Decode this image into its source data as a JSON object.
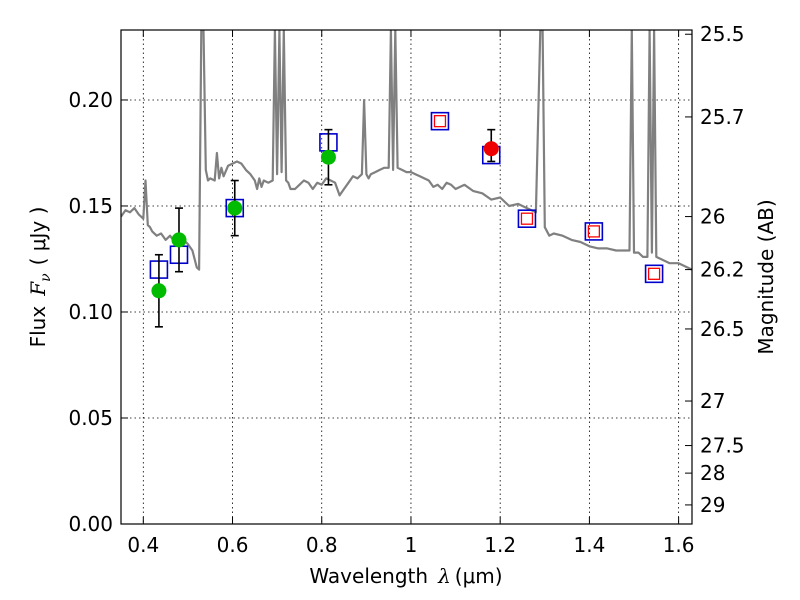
{
  "chart_data": {
    "type": "scatter",
    "xlabel_text": "Wavelength",
    "xlabel_symbol": "λ",
    "xlabel_unit": "(μm)",
    "ylabel_text": "Flux",
    "ylabel_symbol": "F",
    "ylabel_subscript": "ν",
    "ylabel_unit": "( μJy )",
    "y2label": "Magnitude (AB)",
    "xlim": [
      0.35,
      1.63
    ],
    "ylim": [
      0.0,
      0.233
    ],
    "grid": true,
    "x_ticks": [
      0.4,
      0.6,
      0.8,
      1.0,
      1.2,
      1.4,
      1.6
    ],
    "x_tick_labels": [
      "0.4",
      "0.6",
      "0.8",
      "1",
      "1.2",
      "1.4",
      "1.6"
    ],
    "y_ticks": [
      0.0,
      0.05,
      0.1,
      0.15,
      0.2
    ],
    "y_tick_labels": [
      "0.00",
      "0.05",
      "0.10",
      "0.15",
      "0.20"
    ],
    "mag_ticks": [
      {
        "flux": 0.231,
        "label": "25.5"
      },
      {
        "flux": 0.192,
        "label": "25.7"
      },
      {
        "flux": 0.145,
        "label": "26"
      },
      {
        "flux": 0.12,
        "label": "26.2"
      },
      {
        "flux": 0.092,
        "label": "26.5"
      },
      {
        "flux": 0.058,
        "label": "27"
      },
      {
        "flux": 0.037,
        "label": "27.5"
      },
      {
        "flux": 0.024,
        "label": "28"
      },
      {
        "flux": 0.009,
        "label": "29"
      }
    ],
    "series": [
      {
        "style": "line",
        "color": "#808080",
        "x": [
          0.35,
          0.36,
          0.37,
          0.38,
          0.39,
          0.4,
          0.405,
          0.41,
          0.415,
          0.42,
          0.43,
          0.44,
          0.45,
          0.46,
          0.47,
          0.48,
          0.49,
          0.5,
          0.51,
          0.52,
          0.525,
          0.53,
          0.535,
          0.54,
          0.545,
          0.55,
          0.56,
          0.565,
          0.57,
          0.575,
          0.58,
          0.59,
          0.6,
          0.61,
          0.62,
          0.63,
          0.64,
          0.65,
          0.655,
          0.66,
          0.665,
          0.67,
          0.68,
          0.69,
          0.695,
          0.7,
          0.705,
          0.71,
          0.715,
          0.72,
          0.725,
          0.73,
          0.74,
          0.75,
          0.76,
          0.77,
          0.78,
          0.79,
          0.8,
          0.81,
          0.82,
          0.83,
          0.84,
          0.85,
          0.86,
          0.87,
          0.88,
          0.89,
          0.895,
          0.9,
          0.905,
          0.91,
          0.92,
          0.93,
          0.94,
          0.95,
          0.955,
          0.96,
          0.965,
          0.97,
          0.98,
          0.99,
          1.0,
          1.01,
          1.02,
          1.03,
          1.04,
          1.05,
          1.06,
          1.07,
          1.08,
          1.09,
          1.1,
          1.12,
          1.14,
          1.16,
          1.18,
          1.2,
          1.22,
          1.24,
          1.26,
          1.28,
          1.29,
          1.295,
          1.3,
          1.31,
          1.32,
          1.34,
          1.36,
          1.38,
          1.4,
          1.42,
          1.44,
          1.46,
          1.48,
          1.49,
          1.495,
          1.5,
          1.51,
          1.52,
          1.53,
          1.535,
          1.54,
          1.545,
          1.55,
          1.56,
          1.58,
          1.6,
          1.62,
          1.63
        ],
        "values": [
          0.145,
          0.148,
          0.147,
          0.149,
          0.146,
          0.144,
          0.162,
          0.141,
          0.14,
          0.138,
          0.136,
          0.137,
          0.134,
          0.136,
          0.133,
          0.136,
          0.134,
          0.132,
          0.129,
          0.121,
          0.12,
          0.233,
          0.233,
          0.167,
          0.162,
          0.163,
          0.162,
          0.175,
          0.163,
          0.168,
          0.164,
          0.169,
          0.17,
          0.171,
          0.17,
          0.167,
          0.165,
          0.162,
          0.158,
          0.163,
          0.159,
          0.162,
          0.161,
          0.162,
          0.233,
          0.165,
          0.233,
          0.166,
          0.233,
          0.162,
          0.161,
          0.158,
          0.158,
          0.16,
          0.162,
          0.161,
          0.158,
          0.161,
          0.16,
          0.163,
          0.162,
          0.161,
          0.155,
          0.158,
          0.161,
          0.164,
          0.163,
          0.165,
          0.2,
          0.165,
          0.163,
          0.165,
          0.166,
          0.167,
          0.168,
          0.168,
          0.233,
          0.167,
          0.233,
          0.168,
          0.167,
          0.166,
          0.166,
          0.165,
          0.164,
          0.163,
          0.162,
          0.159,
          0.16,
          0.158,
          0.161,
          0.16,
          0.158,
          0.16,
          0.157,
          0.156,
          0.153,
          0.154,
          0.15,
          0.151,
          0.149,
          0.147,
          0.233,
          0.233,
          0.14,
          0.136,
          0.137,
          0.136,
          0.134,
          0.133,
          0.131,
          0.13,
          0.13,
          0.129,
          0.129,
          0.129,
          0.233,
          0.128,
          0.128,
          0.126,
          0.126,
          0.233,
          0.128,
          0.233,
          0.126,
          0.125,
          0.123,
          0.123,
          0.121,
          0.12
        ]
      },
      {
        "style": "open-square",
        "color": "#0000cc",
        "x": [
          0.435,
          0.48,
          0.605,
          0.815,
          1.065,
          1.18,
          1.26,
          1.41,
          1.545
        ],
        "values": [
          0.12,
          0.127,
          0.149,
          0.18,
          0.19,
          0.174,
          0.144,
          0.138,
          0.118
        ]
      },
      {
        "style": "small-open-square",
        "color": "#ff0000",
        "x": [
          1.065,
          1.26,
          1.41,
          1.545
        ],
        "values": [
          0.19,
          0.144,
          0.138,
          0.118
        ]
      },
      {
        "style": "filled-circle",
        "color": "#00bb00",
        "x": [
          0.435,
          0.48,
          0.605,
          0.815
        ],
        "values": [
          0.11,
          0.134,
          0.149,
          0.173
        ],
        "yerr_low": [
          0.093,
          0.119,
          0.136,
          0.16
        ],
        "yerr_high": [
          0.127,
          0.149,
          0.162,
          0.186
        ]
      },
      {
        "style": "filled-circle",
        "color": "#ee0000",
        "x": [
          1.18
        ],
        "values": [
          0.177
        ],
        "yerr_low": [
          0.171
        ],
        "yerr_high": [
          0.186
        ]
      }
    ]
  }
}
